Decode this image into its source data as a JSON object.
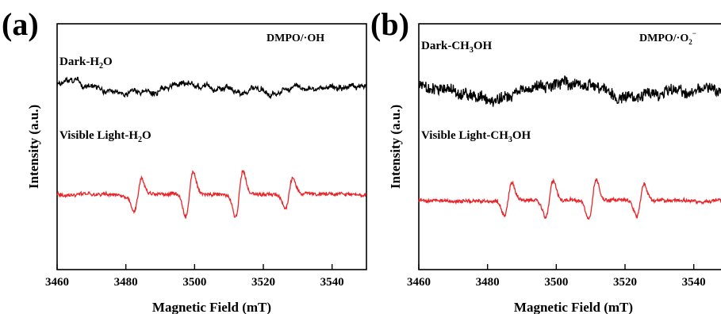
{
  "chart_data": [
    {
      "panel_label": "(a)",
      "type": "line",
      "tag": {
        "text": "DMPO/·OH"
      },
      "xlabel": "Magnetic Field (mT)",
      "ylabel": "Intensity (a.u.)",
      "xlim": [
        3460,
        3550
      ],
      "xticks": [
        3460,
        3480,
        3500,
        3520,
        3540
      ],
      "yticks_shown": false,
      "series": [
        {
          "name": "Dark-H2O",
          "label": {
            "base": "Dark-H",
            "sub": "2",
            "tail": "O"
          },
          "color": "#000000",
          "baseline": 0.6,
          "peaks": []
        },
        {
          "name": "Visible Light-H2O",
          "label": {
            "base": "Visible Light-H",
            "sub": "2",
            "tail": "O"
          },
          "color": "#e8262a",
          "baseline": 0.0,
          "peaks": [
            {
              "x": 3483.5,
              "amp": 0.21
            },
            {
              "x": 3498.5,
              "amp": 0.29
            },
            {
              "x": 3513.0,
              "amp": 0.29
            },
            {
              "x": 3527.5,
              "amp": 0.19
            }
          ]
        }
      ]
    },
    {
      "panel_label": "(b)",
      "type": "line",
      "tag": {
        "text": "DMPO/·O",
        "sub": "2",
        "sup": "−"
      },
      "xlabel": "Magnetic Field (mT)",
      "ylabel": "Intensity (a.u.)",
      "xlim": [
        3460,
        3550
      ],
      "xticks": [
        3460,
        3480,
        3500,
        3520,
        3540
      ],
      "yticks_shown": false,
      "series": [
        {
          "name": "Dark-CH3OH",
          "label": {
            "base": "Dark-CH",
            "sub": "3",
            "tail": "OH"
          },
          "color": "#000000",
          "baseline": 0.6,
          "peaks": []
        },
        {
          "name": "Visible Light-CH3OH",
          "label": {
            "base": "Visible Light-CH",
            "sub": "3",
            "tail": "OH"
          },
          "color": "#e8262a",
          "baseline": 0.0,
          "peaks": [
            {
              "x": 3486.0,
              "amp": 0.21
            },
            {
              "x": 3498.0,
              "amp": 0.23
            },
            {
              "x": 3510.5,
              "amp": 0.25
            },
            {
              "x": 3524.5,
              "amp": 0.21
            }
          ]
        }
      ]
    }
  ]
}
